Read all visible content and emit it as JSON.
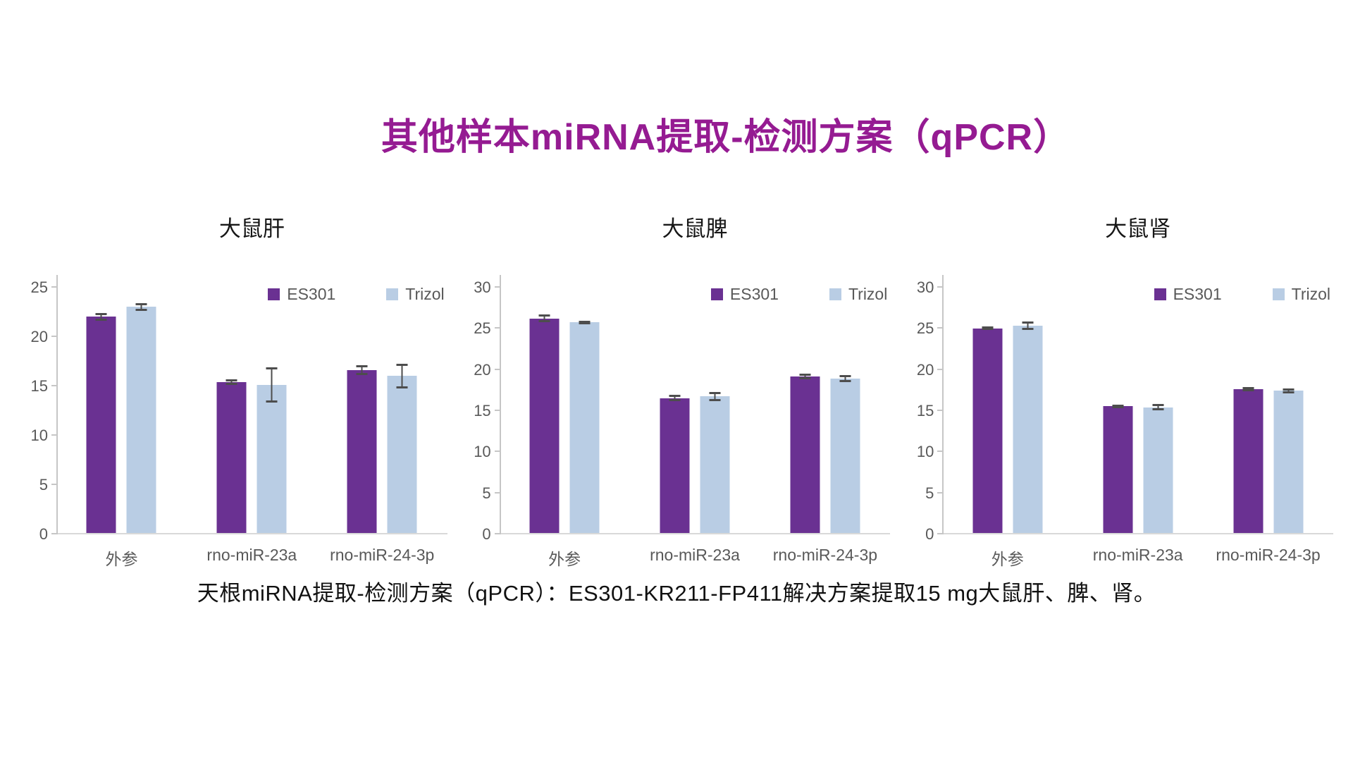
{
  "title": "其他样本miRNA提取-检测方案（qPCR）",
  "caption": "天根miRNA提取-检测方案（qPCR）：ES301-KR211-FP411解决方案提取15 mg大鼠肝、脾、肾。",
  "colors": {
    "title_text": "#951B92",
    "es301_bar": "#6A3192",
    "trizol_bar": "#B9CDE4",
    "axis_text": "#595959",
    "axis_line": "#C6C6C6",
    "baseline": "#D9D9D9",
    "error_bar": "#4d4d4d"
  },
  "chart_data": [
    {
      "type": "bar",
      "title": "大鼠肝",
      "categories": [
        "外参",
        "rno-miR-23a",
        "rno-miR-24-3p"
      ],
      "series": [
        {
          "name": "ES301",
          "color": "#6A3192",
          "values": [
            21.9,
            15.3,
            16.5
          ],
          "errors": [
            0.3,
            0.2,
            0.4
          ]
        },
        {
          "name": "Trizol",
          "color": "#B9CDE4",
          "values": [
            22.9,
            15.0,
            15.9
          ],
          "errors": [
            0.3,
            1.7,
            1.2
          ]
        }
      ],
      "xlabel": "",
      "ylabel": "",
      "ylim": [
        0,
        25
      ],
      "yticks": [
        0,
        5,
        10,
        15,
        20,
        25
      ],
      "grid": false,
      "legend_position": "top-right",
      "error_bars": true
    },
    {
      "type": "bar",
      "title": "大鼠脾",
      "categories": [
        "外参",
        "rno-miR-23a",
        "rno-miR-24-3p"
      ],
      "series": [
        {
          "name": "ES301",
          "color": "#6A3192",
          "values": [
            26.1,
            16.4,
            19.0
          ],
          "errors": [
            0.35,
            0.3,
            0.25
          ]
        },
        {
          "name": "Trizol",
          "color": "#B9CDE4",
          "values": [
            25.6,
            16.6,
            18.8
          ],
          "errors": [
            0.1,
            0.5,
            0.35
          ]
        }
      ],
      "xlabel": "",
      "ylabel": "",
      "ylim": [
        0,
        30
      ],
      "yticks": [
        0,
        5,
        10,
        15,
        20,
        25,
        30
      ],
      "grid": false,
      "legend_position": "top-right",
      "error_bars": true
    },
    {
      "type": "bar",
      "title": "大鼠肾",
      "categories": [
        "外参",
        "rno-miR-23a",
        "rno-miR-24-3p"
      ],
      "series": [
        {
          "name": "ES301",
          "color": "#6A3192",
          "values": [
            24.9,
            15.4,
            17.5
          ],
          "errors": [
            0.1,
            0.1,
            0.15
          ]
        },
        {
          "name": "Trizol",
          "color": "#B9CDE4",
          "values": [
            25.2,
            15.3,
            17.3
          ],
          "errors": [
            0.4,
            0.3,
            0.2
          ]
        }
      ],
      "xlabel": "",
      "ylabel": "",
      "ylim": [
        0,
        30
      ],
      "yticks": [
        0,
        5,
        10,
        15,
        20,
        25,
        30
      ],
      "grid": false,
      "legend_position": "top-right",
      "error_bars": true
    }
  ]
}
